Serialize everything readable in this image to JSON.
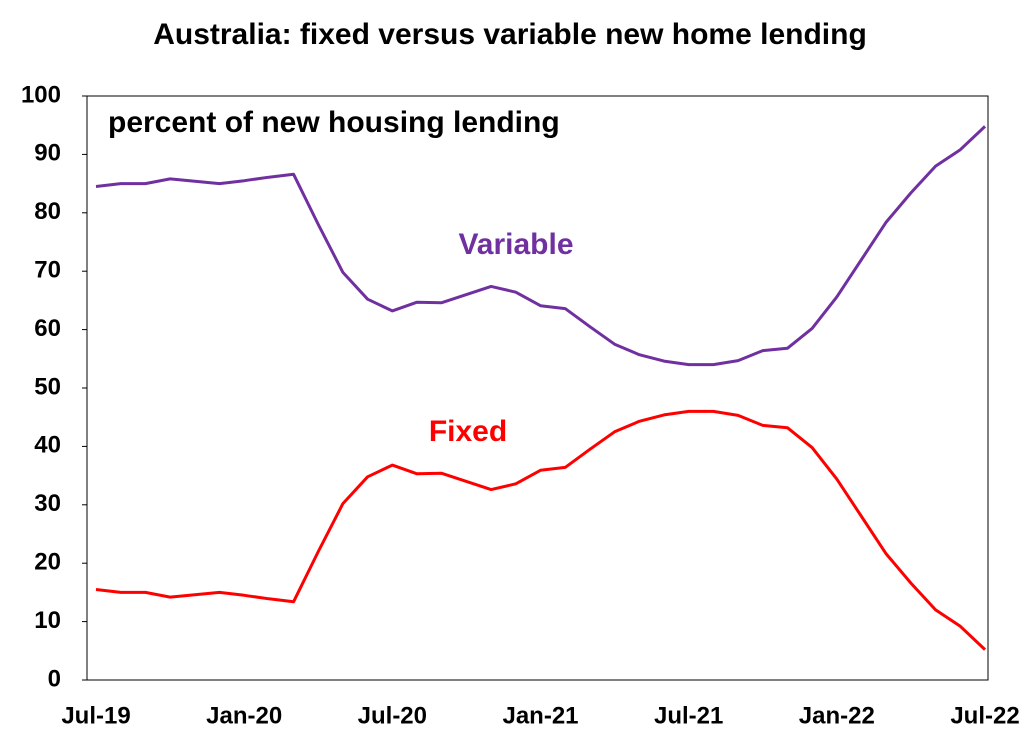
{
  "chart_data": {
    "type": "line",
    "title": "Australia: fixed versus variable new home lending",
    "annotation": "percent of new housing lending",
    "categories": [
      "Jul-19",
      null,
      null,
      null,
      null,
      null,
      "Jan-20",
      null,
      null,
      null,
      null,
      null,
      "Jul-20",
      null,
      null,
      null,
      null,
      null,
      "Jan-21",
      null,
      null,
      null,
      null,
      null,
      "Jul-21",
      null,
      null,
      null,
      null,
      null,
      "Jan-22",
      null,
      null,
      null,
      null,
      null,
      "Jul-22"
    ],
    "series": [
      {
        "name": "Variable",
        "color": "#7030a0",
        "values": [
          84.5,
          85,
          85,
          85.8,
          85.4,
          85,
          85.5,
          86.1,
          86.6,
          78,
          69.8,
          65.2,
          63.2,
          64.7,
          64.6,
          66,
          67.4,
          66.4,
          64.1,
          63.6,
          60.5,
          57.5,
          55.7,
          54.6,
          54,
          54,
          54.7,
          56.4,
          56.8,
          60.2,
          65.6,
          72,
          78.4,
          83.4,
          88,
          90.8,
          94.8
        ]
      },
      {
        "name": "Fixed",
        "color": "#ff0000",
        "values": [
          15.5,
          15,
          15,
          14.2,
          14.6,
          15,
          14.5,
          13.9,
          13.4,
          22,
          30.2,
          34.8,
          36.8,
          35.3,
          35.4,
          34,
          32.6,
          33.6,
          35.9,
          36.4,
          39.5,
          42.5,
          44.3,
          45.4,
          46,
          46,
          45.3,
          43.6,
          43.2,
          39.8,
          34.4,
          28,
          21.6,
          16.6,
          12,
          9.2,
          5.2
        ]
      }
    ],
    "ylim": [
      0,
      100
    ],
    "yticks": [
      0,
      10,
      20,
      30,
      40,
      50,
      60,
      70,
      80,
      90,
      100
    ],
    "grid": false
  }
}
